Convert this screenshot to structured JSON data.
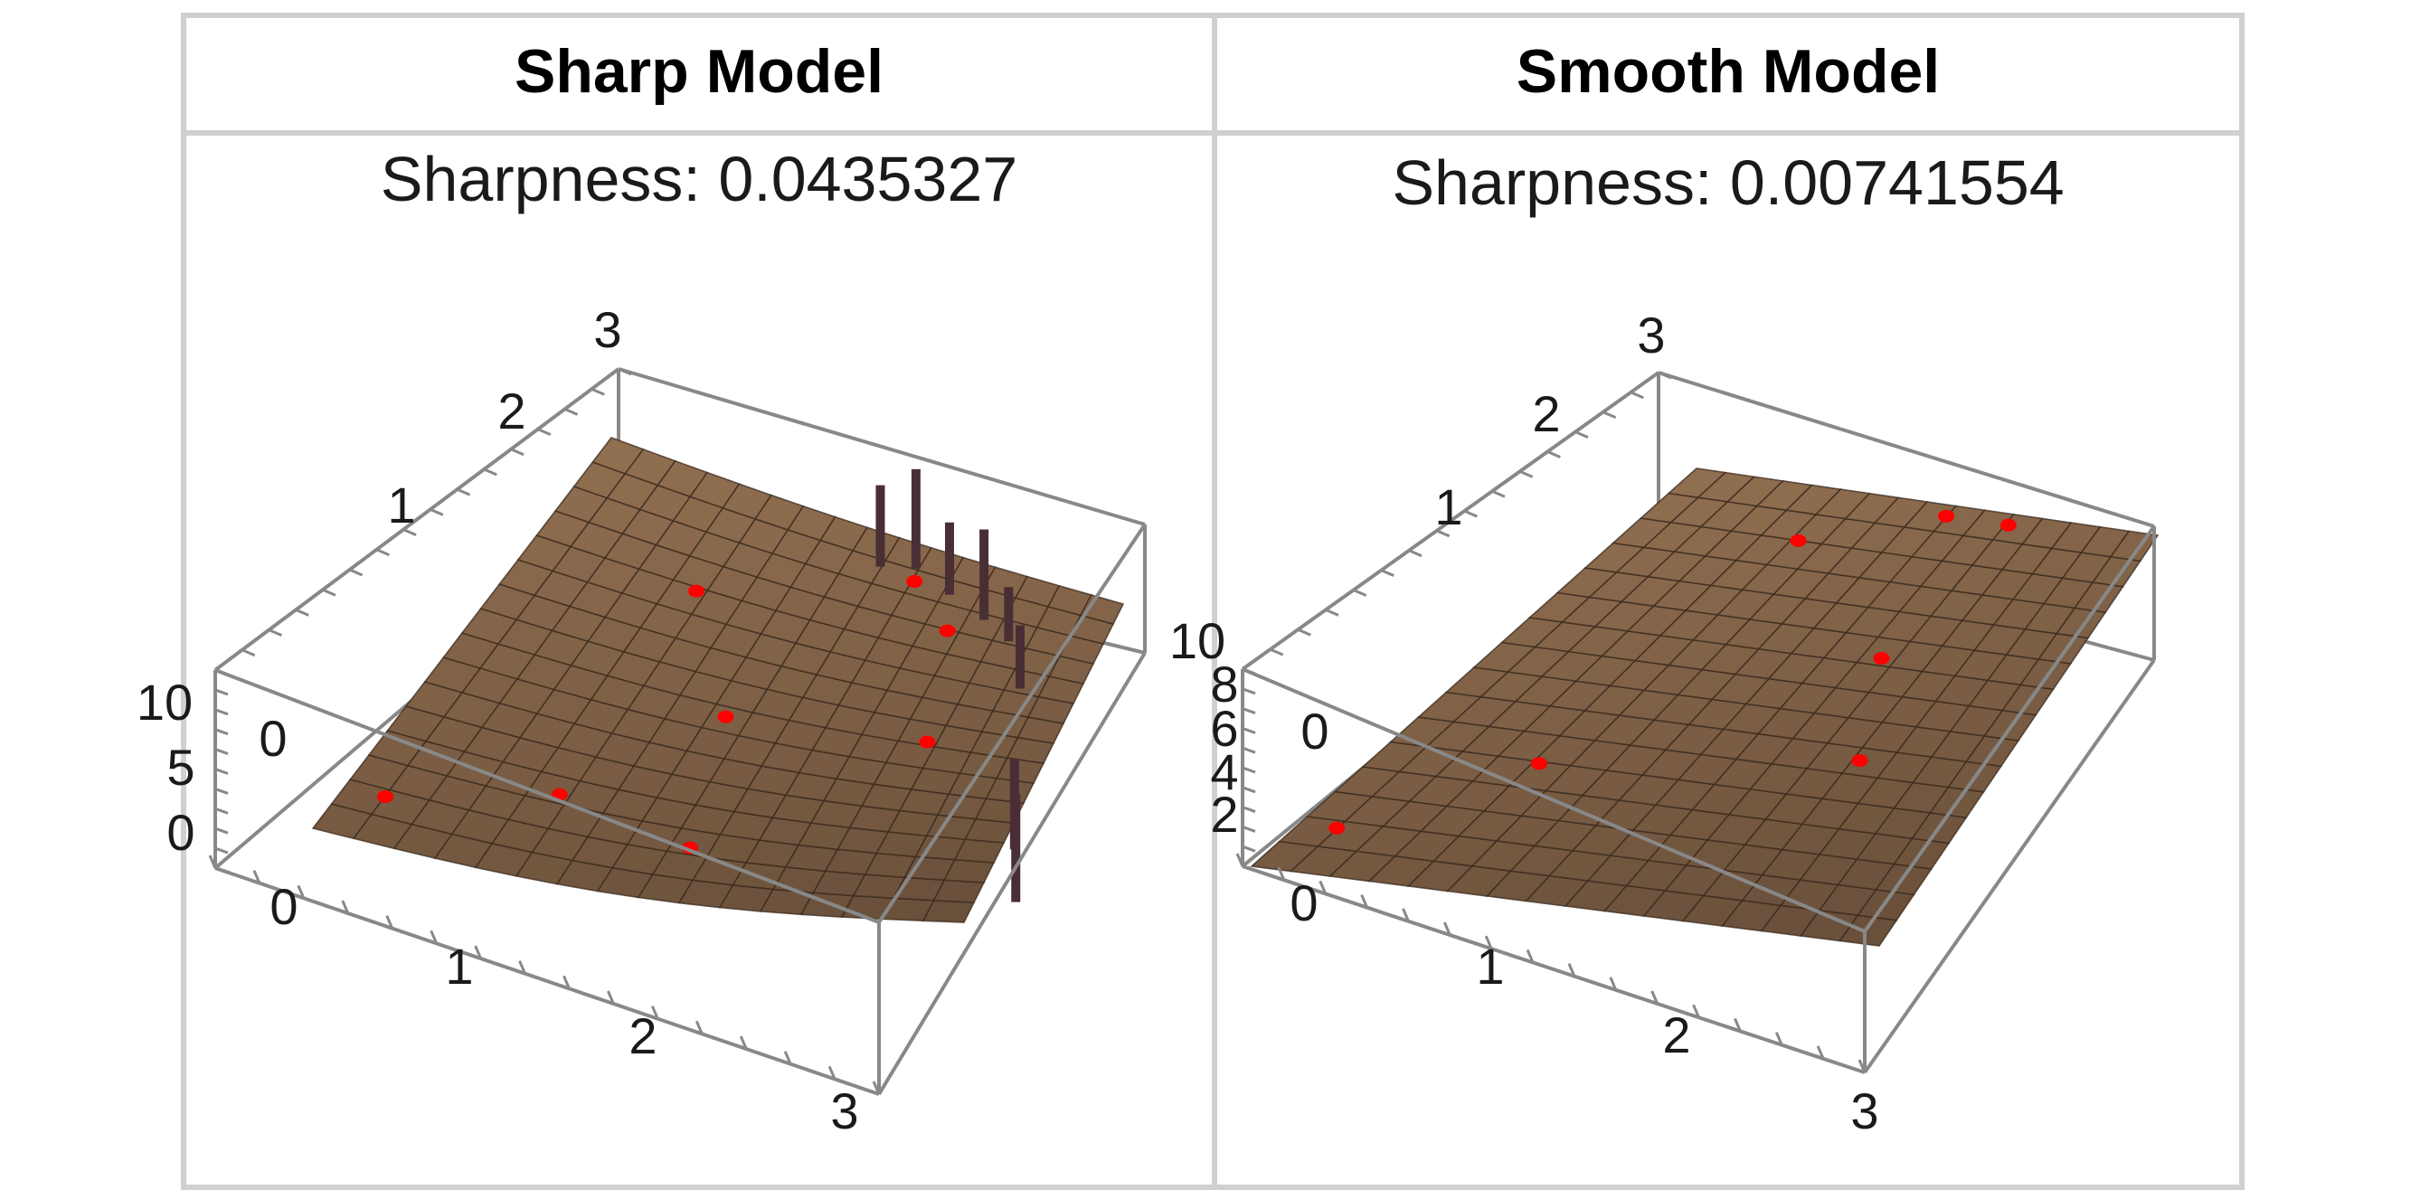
{
  "table": {
    "headers": [
      "Sharp Model",
      "Smooth Model"
    ]
  },
  "panels": [
    {
      "title": "Sharpness: 0.0435327",
      "x_ticks": [
        "0",
        "1",
        "2",
        "3"
      ],
      "y_ticks": [
        "0",
        "1",
        "2",
        "3"
      ],
      "z_ticks": [
        "0",
        "5",
        "10"
      ]
    },
    {
      "title": "Sharpness: 0.00741554",
      "x_ticks": [
        "0",
        "1",
        "2",
        "3"
      ],
      "y_ticks": [
        "0",
        "1",
        "2",
        "3"
      ],
      "z_ticks": [
        "2",
        "4",
        "6",
        "8",
        "10"
      ]
    }
  ],
  "colors": {
    "surface": "#8b6a4d",
    "surface_mesh": "#3a2a1e",
    "box": "#888888",
    "points": "#ff0000",
    "frame": "#d0d0d0"
  },
  "chart_data": [
    {
      "type": "surface3d",
      "title": "Sharpness: 0.0435327",
      "x_range": [
        0,
        3
      ],
      "y_range": [
        0,
        3
      ],
      "z_range": [
        0,
        10
      ],
      "points": [
        {
          "x": 0.2,
          "y": 0.3,
          "z": 1
        },
        {
          "x": 0.9,
          "y": 0.6,
          "z": 2
        },
        {
          "x": 1.6,
          "y": 0.4,
          "z": 4
        },
        {
          "x": 1.4,
          "y": 1.4,
          "z": 3
        },
        {
          "x": 2.2,
          "y": 2.4,
          "z": 7
        },
        {
          "x": 0.9,
          "y": 2.2,
          "z": 2
        },
        {
          "x": 1.9,
          "y": 2.7,
          "z": 5
        },
        {
          "x": 2.4,
          "y": 1.5,
          "z": 4
        }
      ]
    },
    {
      "type": "surface3d",
      "title": "Sharpness: 0.00741554",
      "x_range": [
        0,
        3
      ],
      "y_range": [
        0,
        3
      ],
      "z_range": [
        0,
        10
      ],
      "points": [
        {
          "x": 0.2,
          "y": 0.3,
          "z": 2
        },
        {
          "x": 0.8,
          "y": 0.9,
          "z": 3
        },
        {
          "x": 2.3,
          "y": 1.2,
          "z": 7
        },
        {
          "x": 2.0,
          "y": 1.9,
          "z": 6
        },
        {
          "x": 1.0,
          "y": 2.6,
          "z": 8
        },
        {
          "x": 1.7,
          "y": 2.9,
          "z": 9
        },
        {
          "x": 2.1,
          "y": 2.9,
          "z": 9
        }
      ]
    }
  ]
}
